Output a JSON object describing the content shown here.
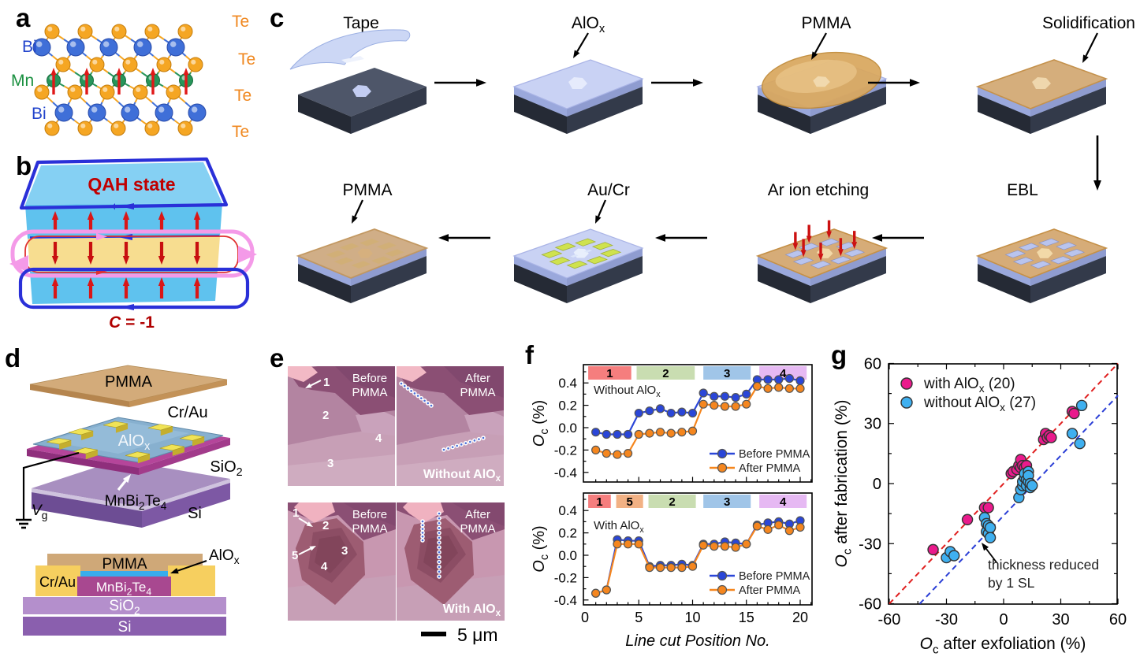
{
  "panel_labels": {
    "a": "a",
    "b": "b",
    "c": "c",
    "d": "d",
    "e": "e",
    "f": "f",
    "g": "g"
  },
  "panel_a": {
    "labels": {
      "bi_top": "Bi",
      "mn": "Mn",
      "bi_bottom": "Bi",
      "te_1": "Te",
      "te_2": "Te",
      "te_3": "Te",
      "te_4": "Te"
    },
    "colors": {
      "te": "#f5a623",
      "bi": "#3f6fd8",
      "mn": "#27955a",
      "spin_arrow": "#e01818"
    }
  },
  "panel_b": {
    "title": "QAH state",
    "chern_label": "C = -1",
    "colors": {
      "layer_blue": "#5fc2ee",
      "layer_yellow": "#f7dd90",
      "edge_blue": "#2a30d8",
      "edge_pink": "#f49ae8",
      "edge_red": "#e03030",
      "text_red": "#c00000"
    }
  },
  "panel_c": {
    "steps": [
      {
        "label": "Tape"
      },
      {
        "label": "AlO_{x}"
      },
      {
        "label": "PMMA"
      },
      {
        "label": "Solidification"
      },
      {
        "label": "EBL"
      },
      {
        "label": "Ar ion etching"
      },
      {
        "label": "Au/Cr"
      },
      {
        "label": "PMMA"
      }
    ]
  },
  "panel_d": {
    "labels": {
      "pmma": "PMMA",
      "crau": "Cr/Au",
      "alox": "AlO_{x}",
      "sio2": "SiO_{2}",
      "mbt": "MnBi_{2}Te_{4}",
      "si": "Si",
      "vg": "V_{g}"
    },
    "cross_section": {
      "pmma": "PMMA",
      "crau": "Cr/Au",
      "alox": "AlO_{x}",
      "mbt": "MnBi_{2}Te_{4}",
      "sio2": "SiO_{2}",
      "si": "Si"
    }
  },
  "panel_e": {
    "top": {
      "left_caption": [
        "Before",
        "PMMA"
      ],
      "right_caption": [
        "After",
        "PMMA"
      ],
      "condition": "Without AlO_{x}",
      "regions": [
        "1",
        "2",
        "4",
        "3"
      ]
    },
    "bottom": {
      "left_caption": [
        "Before",
        "PMMA"
      ],
      "right_caption": [
        "After",
        "PMMA"
      ],
      "condition": "With AlO_{x}",
      "regions": [
        "1",
        "2",
        "5",
        "3",
        "4"
      ]
    },
    "scale_bar": {
      "label": "5 μm"
    }
  },
  "chart_data": [
    {
      "id": "oc-line-without-alox",
      "type": "line",
      "inside_label": "Without AlO_{x}",
      "ylabel": "O_{c} (%)",
      "xticks": [
        0,
        5,
        10,
        15,
        20
      ],
      "yticks": [
        0.4,
        0.2,
        0.0,
        -0.2,
        -0.4
      ],
      "xlim": [
        0,
        21.2
      ],
      "ylim": [
        -0.5,
        0.58
      ],
      "bands": [
        {
          "label": "1",
          "color": "#f57e7e",
          "from": 0.3,
          "to": 4.3
        },
        {
          "label": "2",
          "color": "#c9ddb1",
          "from": 4.8,
          "to": 10.2
        },
        {
          "label": "3",
          "color": "#a0c5e8",
          "from": 11.0,
          "to": 15.4
        },
        {
          "label": "4",
          "color": "#e6b9f3",
          "from": 16.2,
          "to": 20.6
        }
      ],
      "series": [
        {
          "name": "Before PMMA",
          "color": "#2a46d8",
          "values": [
            -0.04,
            -0.06,
            -0.06,
            -0.06,
            0.13,
            0.15,
            0.17,
            0.13,
            0.14,
            0.13,
            0.31,
            0.28,
            0.28,
            0.27,
            0.3,
            0.43,
            0.43,
            0.43,
            0.44,
            0.42
          ]
        },
        {
          "name": "After PMMA",
          "color": "#f5861e",
          "values": [
            -0.2,
            -0.23,
            -0.24,
            -0.23,
            -0.06,
            -0.05,
            -0.04,
            -0.05,
            -0.04,
            -0.03,
            0.21,
            0.2,
            0.19,
            0.19,
            0.21,
            0.37,
            0.35,
            0.36,
            0.35,
            0.35
          ]
        }
      ]
    },
    {
      "id": "oc-line-with-alox",
      "type": "line",
      "inside_label": "With AlO_{x}",
      "ylabel": "O_{c} (%)",
      "xlabel": "Line cut Position No.",
      "xticks": [
        0,
        5,
        10,
        15,
        20
      ],
      "yticks": [
        0.4,
        0.2,
        0.0,
        -0.2,
        -0.4
      ],
      "xlim": [
        0,
        21.2
      ],
      "ylim": [
        -0.44,
        0.56
      ],
      "bands": [
        {
          "label": "1",
          "color": "#f57e7e",
          "from": 0.3,
          "to": 2.4
        },
        {
          "label": "5",
          "color": "#f2b184",
          "from": 2.9,
          "to": 5.4
        },
        {
          "label": "2",
          "color": "#c9ddb1",
          "from": 5.9,
          "to": 10.3
        },
        {
          "label": "3",
          "color": "#a0c5e8",
          "from": 11.0,
          "to": 15.4
        },
        {
          "label": "4",
          "color": "#e6b9f3",
          "from": 16.2,
          "to": 20.6
        }
      ],
      "series": [
        {
          "name": "Before PMMA",
          "color": "#2a46d8",
          "values": [
            -0.34,
            -0.31,
            0.14,
            0.13,
            0.13,
            -0.1,
            -0.09,
            -0.09,
            -0.08,
            -0.09,
            0.1,
            0.1,
            0.12,
            0.11,
            0.1,
            0.27,
            0.29,
            0.3,
            0.28,
            0.31
          ]
        },
        {
          "name": "After PMMA",
          "color": "#f5861e",
          "values": [
            -0.34,
            -0.31,
            0.1,
            0.1,
            0.1,
            -0.11,
            -0.11,
            -0.11,
            -0.11,
            -0.1,
            0.09,
            0.08,
            0.08,
            0.07,
            0.1,
            0.26,
            0.23,
            0.27,
            0.22,
            0.25
          ]
        }
      ]
    },
    {
      "id": "oc-scatter",
      "type": "scatter",
      "xlabel": "O_{c} after exfoliation (%)",
      "ylabel": "O_{c} after fabrication (%)",
      "xticks": [
        -60,
        -30,
        0,
        30,
        60
      ],
      "yticks": [
        60,
        30,
        0,
        -30,
        -60
      ],
      "xlim": [
        -60,
        60
      ],
      "ylim": [
        -60,
        60
      ],
      "series": [
        {
          "name": "with AlO_{x} (20)",
          "color": "#ea1a8c",
          "points": [
            [
              -37,
              -33
            ],
            [
              -19,
              -18
            ],
            [
              -10,
              -12
            ],
            [
              -8,
              -12
            ],
            [
              4,
              5
            ],
            [
              5,
              6
            ],
            [
              7,
              7
            ],
            [
              8,
              9
            ],
            [
              9,
              12
            ],
            [
              9,
              8
            ],
            [
              10,
              9
            ],
            [
              11,
              8
            ],
            [
              12,
              9
            ],
            [
              21,
              22
            ],
            [
              22,
              25
            ],
            [
              23,
              23
            ],
            [
              24,
              24
            ],
            [
              25,
              23
            ],
            [
              36,
              36
            ],
            [
              37,
              35
            ]
          ]
        },
        {
          "name": "without AlO_{x} (27)",
          "color": "#3fb0f0",
          "points": [
            [
              -30,
              -37
            ],
            [
              -28,
              -34
            ],
            [
              -26,
              -36
            ],
            [
              -10,
              -17
            ],
            [
              -9,
              -20
            ],
            [
              -9,
              -24
            ],
            [
              -8,
              -21
            ],
            [
              -8,
              -25
            ],
            [
              -7,
              -22
            ],
            [
              -7,
              -27
            ],
            [
              8,
              -7
            ],
            [
              9,
              -3
            ],
            [
              10,
              -1
            ],
            [
              10,
              1
            ],
            [
              11,
              3
            ],
            [
              11,
              5
            ],
            [
              12,
              2
            ],
            [
              12,
              -1
            ],
            [
              13,
              6
            ],
            [
              13,
              1
            ],
            [
              13,
              4
            ],
            [
              14,
              -2
            ],
            [
              14,
              0
            ],
            [
              15,
              -1
            ],
            [
              36,
              25
            ],
            [
              40,
              20
            ],
            [
              41,
              39
            ]
          ]
        }
      ],
      "ref_lines": [
        {
          "color": "#e02020",
          "slope": 1,
          "intercept": 0
        },
        {
          "color": "#2b3fd6",
          "slope": 1,
          "intercept": -16
        }
      ],
      "annotation": {
        "lines": [
          "thickness reduced",
          "by 1 SL"
        ]
      }
    }
  ]
}
